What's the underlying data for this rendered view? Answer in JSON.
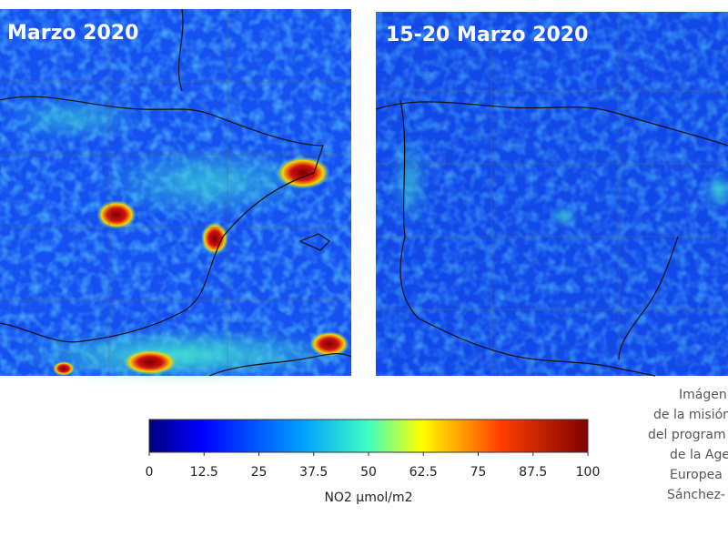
{
  "panels": [
    {
      "title": "Marzo 2020"
    },
    {
      "title": "15-20 Marzo 2020"
    }
  ],
  "colorbar": {
    "range": [
      0,
      100
    ],
    "ticks": [
      0,
      12.5,
      25,
      37.5,
      50,
      62.5,
      75,
      87.5,
      100
    ],
    "label": "NO2 µmol/m2"
  },
  "credit": [
    "Imágen",
    "de la misión",
    "del program",
    "de la Age",
    "Europea",
    "Sánchez-"
  ]
}
